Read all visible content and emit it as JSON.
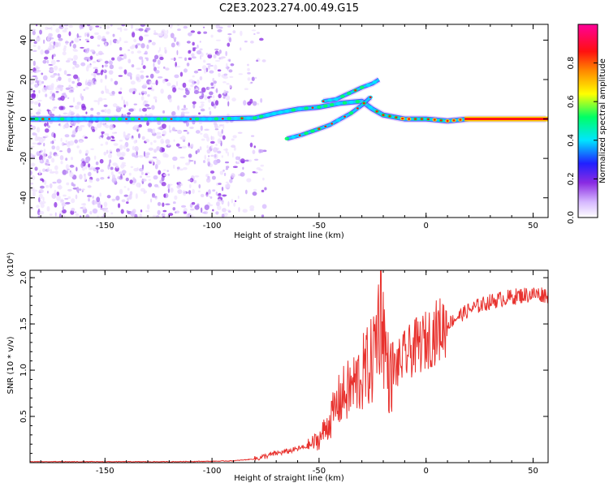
{
  "title": "C2E3.2023.274.00.49.G15",
  "chart_data": [
    {
      "type": "heatmap",
      "xlabel": "Height of straight line (km)",
      "ylabel": "Frequency (Hz)",
      "xlim": [
        -185,
        57
      ],
      "ylim": [
        -50,
        48
      ],
      "x_ticks": [
        -150,
        -100,
        -50,
        0,
        50
      ],
      "y_ticks": [
        -40,
        -20,
        0,
        20,
        40
      ],
      "colorbar": {
        "label": "Normalized spectral amplitude",
        "range": [
          0,
          1
        ],
        "ticks": [
          0.0,
          0.2,
          0.4,
          0.6,
          0.8
        ],
        "colors": [
          "#ffffff",
          "#d6b8ff",
          "#8a2be2",
          "#2020ff",
          "#00e5ff",
          "#00ff66",
          "#ffff00",
          "#ff8800",
          "#ff1010",
          "#ff0099"
        ]
      },
      "traces": [
        {
          "x": [
            -185,
            -100,
            -80,
            -70,
            -60,
            -50,
            -40,
            -30,
            -25,
            -20,
            -10,
            0,
            10,
            20,
            40,
            56
          ],
          "y": [
            0,
            0,
            0.5,
            3,
            5,
            6,
            8,
            9,
            5,
            2,
            0,
            0,
            -1,
            0,
            0,
            0
          ]
        },
        {
          "x": [
            -48,
            -42,
            -38,
            -34,
            -30,
            -25,
            -22
          ],
          "y": [
            9,
            10,
            12,
            14,
            16,
            18,
            20
          ]
        },
        {
          "x": [
            -65,
            -58,
            -50,
            -45,
            -40,
            -35,
            -30,
            -26
          ],
          "y": [
            -10,
            -8,
            -5,
            -3,
            0,
            3,
            7,
            11
          ]
        }
      ]
    },
    {
      "type": "line",
      "xlabel": "Height of straight line (km)",
      "ylabel": "SNR (10 * v/v)",
      "y_multiplier": "(x10⁴)",
      "xlim": [
        -185,
        57
      ],
      "ylim": [
        0,
        2.08
      ],
      "x_ticks": [
        -150,
        -100,
        -50,
        0,
        50
      ],
      "y_ticks": [
        0.5,
        1.0,
        1.5,
        2.0
      ],
      "color": "#e8322e",
      "series": [
        {
          "x": [
            -185,
            -150,
            -120,
            -100,
            -90,
            -80,
            -75,
            -70,
            -65,
            -60,
            -55,
            -50,
            -45,
            -40,
            -35,
            -30,
            -25,
            -21,
            -19,
            -17,
            -15,
            -10,
            -5,
            0,
            5,
            10,
            15,
            20,
            25,
            30,
            35,
            40,
            45,
            50,
            55,
            57
          ],
          "values": [
            0.01,
            0.01,
            0.01,
            0.015,
            0.02,
            0.04,
            0.07,
            0.1,
            0.12,
            0.15,
            0.18,
            0.25,
            0.45,
            0.7,
            0.8,
            0.95,
            1.1,
            1.75,
            1.2,
            0.9,
            1.0,
            1.15,
            1.25,
            1.32,
            1.42,
            1.5,
            1.58,
            1.65,
            1.7,
            1.74,
            1.77,
            1.79,
            1.81,
            1.82,
            1.82,
            1.81
          ]
        }
      ]
    }
  ]
}
